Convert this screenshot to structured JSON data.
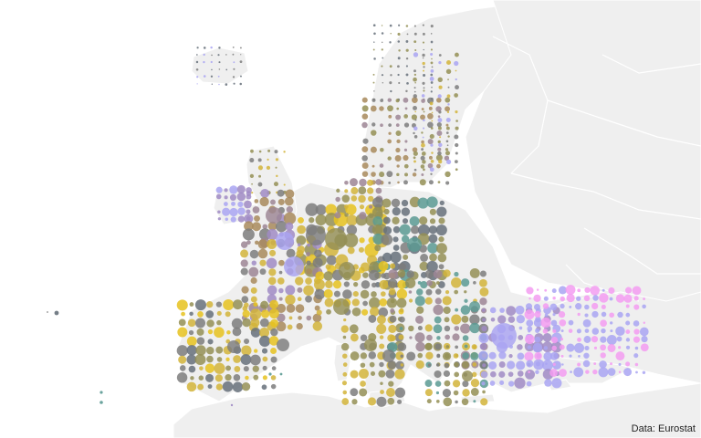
{
  "map": {
    "credit": "Data: Eurostat",
    "colors": {
      "sea": "#ffffff",
      "land": "#efefef",
      "border": "#ffffff",
      "gray": "#7d7d7d",
      "olive": "#948f55",
      "gold": "#d2b43a",
      "yellow": "#e6c21e",
      "teal": "#5b9a93",
      "purple": "#a08bc4",
      "lavender": "#a9a4f2",
      "pink": "#f39cf1",
      "mauve": "#9c8594",
      "brown": "#a88a5c",
      "slate": "#66707a"
    }
  }
}
